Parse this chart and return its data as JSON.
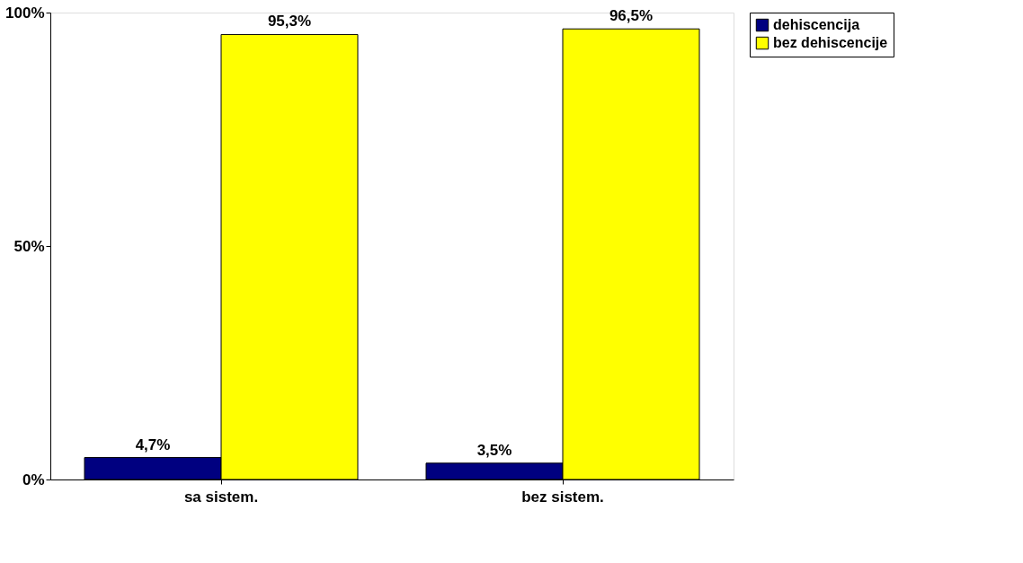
{
  "chart_data": {
    "type": "bar",
    "categories": [
      "sa sistem.",
      "bez sistem."
    ],
    "series": [
      {
        "name": "dehiscencija",
        "color": "#000080",
        "values": [
          4.7,
          3.5
        ],
        "value_labels": [
          "4,7%",
          "3,5%"
        ]
      },
      {
        "name": "bez dehiscencije",
        "color": "#ffff00",
        "values": [
          95.3,
          96.5
        ],
        "value_labels": [
          "95,3%",
          "96,5%"
        ]
      }
    ],
    "ylim": [
      0,
      100
    ],
    "yticks": [
      {
        "value": 0,
        "label": "0%"
      },
      {
        "value": 50,
        "label": "50%"
      },
      {
        "value": 100,
        "label": "100%"
      }
    ],
    "grid": false,
    "legend": "right"
  }
}
